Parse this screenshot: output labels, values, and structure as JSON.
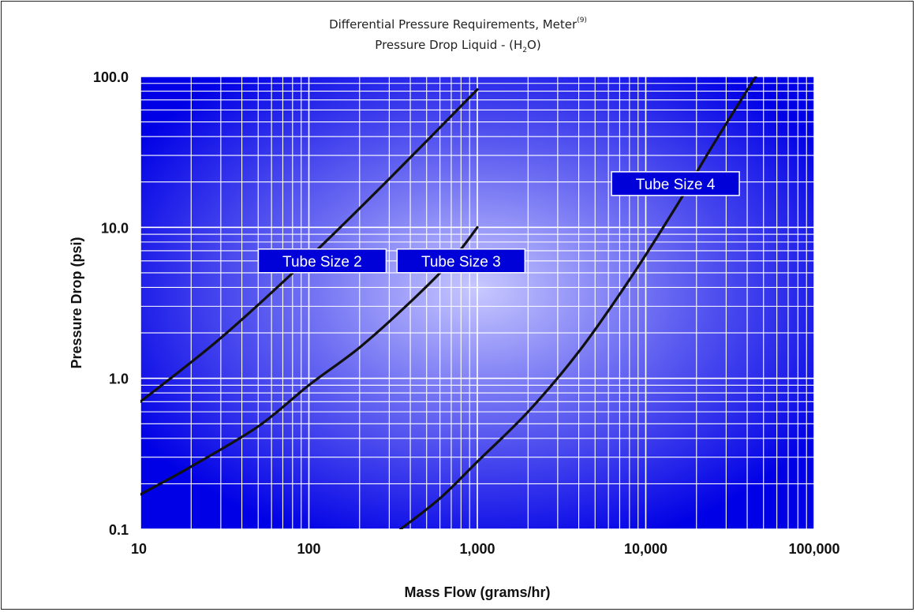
{
  "title_line1": "Differential Pressure Requirements, Meter",
  "title_line1_superscript": "(9)",
  "title_line2_prefix": "Pressure Drop Liquid - (H",
  "title_line2_subscript": "2",
  "title_line2_suffix": "O)",
  "chart_data": {
    "type": "line",
    "xlabel": "Mass Flow (grams/hr)",
    "ylabel": "Pressure Drop (psi)",
    "x_scale": "log",
    "y_scale": "log",
    "xlim": [
      10,
      100000
    ],
    "ylim": [
      0.1,
      100
    ],
    "x_tick_values": [
      10,
      100,
      1000,
      10000,
      100000
    ],
    "x_tick_labels": [
      "10",
      "100",
      "1,000",
      "10,000",
      "100,000"
    ],
    "y_tick_values": [
      0.1,
      1,
      10,
      100
    ],
    "y_tick_labels": [
      "0.1",
      "1.0",
      "10.0",
      "100.0"
    ],
    "grid": true,
    "plot_background": "#0000e6",
    "plot_highlight": "#c8c8ff",
    "line_color": "#111111",
    "series": [
      {
        "name": "Tube Size 2",
        "points": [
          [
            10,
            0.7
          ],
          [
            30,
            1.85
          ],
          [
            100,
            6.3
          ],
          [
            300,
            21
          ],
          [
            1000,
            82
          ]
        ]
      },
      {
        "name": "Tube Size 3",
        "points": [
          [
            10,
            0.17
          ],
          [
            20,
            0.26
          ],
          [
            50,
            0.48
          ],
          [
            100,
            0.9
          ],
          [
            200,
            1.6
          ],
          [
            400,
            3.2
          ],
          [
            700,
            6.0
          ],
          [
            1000,
            10
          ]
        ]
      },
      {
        "name": "Tube Size 4",
        "points": [
          [
            350,
            0.1
          ],
          [
            600,
            0.16
          ],
          [
            1000,
            0.28
          ],
          [
            2000,
            0.6
          ],
          [
            4000,
            1.5
          ],
          [
            8000,
            4.5
          ],
          [
            15000,
            13.5
          ],
          [
            25000,
            35
          ],
          [
            45000,
            100
          ]
        ]
      }
    ],
    "annotations": [
      {
        "text": "Tube Size 2",
        "x": 120,
        "y": 6.0
      },
      {
        "text": "Tube Size 3",
        "x": 800,
        "y": 6.0
      },
      {
        "text": "Tube Size 4",
        "x": 15000,
        "y": 19.5
      }
    ]
  }
}
